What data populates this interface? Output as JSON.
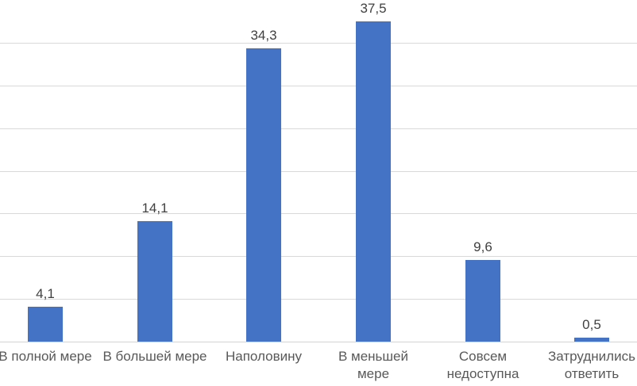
{
  "chart_data": {
    "type": "bar",
    "title": "",
    "xlabel": "",
    "ylabel": "",
    "categories": [
      "В полной мере",
      "В большей мере",
      "Наполовину",
      "В меньшей мере",
      "Совсем недоступна",
      "Затруднились ответить"
    ],
    "values": [
      4.1,
      14.1,
      34.3,
      37.5,
      9.6,
      0.5
    ],
    "data_labels": [
      "4,1",
      "14,1",
      "34,3",
      "37,5",
      "9,6",
      "0,5"
    ],
    "ylim": [
      0,
      40
    ],
    "gridline_step": 5,
    "grid": true,
    "legend": false,
    "y_axis_tick_labels_visible": false,
    "colors": {
      "bar": "#4472C4",
      "gridline": "#D9D9D9",
      "axis_line": "#D4D4D4",
      "value_label": "#404040",
      "category_label": "#595959",
      "background": "#FFFFFF"
    }
  }
}
